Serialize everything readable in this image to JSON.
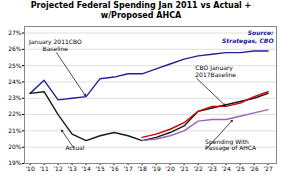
{
  "chart_data": {
    "type": "line",
    "title": "Projected Federal Spending Jan 2011 vs Actual +\nw/Proposed AHCA",
    "source": "Source:\nStrategas, CBO",
    "x": [
      10,
      11,
      12,
      13,
      14,
      15,
      16,
      17,
      18,
      19,
      20,
      21,
      22,
      23,
      24,
      25,
      26,
      27
    ],
    "series": [
      {
        "color": "#22229a",
        "values": [
          23.3,
          24.1,
          22.9,
          23.0,
          23.1,
          24.2,
          24.3,
          24.5,
          24.5,
          24.8,
          25.1,
          25.4,
          25.6,
          25.7,
          25.8,
          25.8,
          25.9,
          25.9
        ]
      },
      {
        "color": "#1a1a1a",
        "values": [
          23.3,
          23.4,
          22.0,
          20.8,
          20.4,
          20.7,
          20.9,
          20.7,
          20.4,
          20.6,
          20.9,
          21.3,
          22.2,
          22.4,
          22.6,
          22.8,
          23.0,
          23.3
        ]
      },
      {
        "color": "#cc0000",
        "values": [
          null,
          null,
          null,
          null,
          null,
          null,
          null,
          null,
          20.6,
          20.8,
          21.1,
          21.5,
          22.2,
          22.5,
          22.5,
          22.7,
          23.1,
          23.4
        ]
      },
      {
        "color": "#9966bb",
        "values": [
          null,
          null,
          null,
          null,
          null,
          null,
          null,
          null,
          20.4,
          20.5,
          20.7,
          21.0,
          21.6,
          21.7,
          21.7,
          21.9,
          22.1,
          22.3
        ]
      }
    ],
    "annotations": [
      {
        "text": "January 2011CBO\nBaseline",
        "x": 14.0,
        "y": 23.1,
        "text_x": 11.8,
        "text_y": 25.9,
        "align": "center"
      },
      {
        "text": "Actual",
        "x": 12.2,
        "y": 21.1,
        "text_x": 13.2,
        "text_y": 19.85,
        "align": "center"
      },
      {
        "text": "CBO January\n2017Baseline",
        "x": 24.0,
        "y": 22.5,
        "text_x": 21.8,
        "text_y": 24.3,
        "align": "left"
      },
      {
        "text": "Spending With\nPassage of AHCA",
        "x": 24.5,
        "y": 21.7,
        "text_x": 22.5,
        "text_y": 19.8,
        "align": "left"
      }
    ],
    "xlim": [
      9.6,
      27.6
    ],
    "xticks": [
      {
        "value": 10,
        "label": "'10"
      },
      {
        "value": 11,
        "label": "'11"
      },
      {
        "value": 12,
        "label": "'12"
      },
      {
        "value": 13,
        "label": "'13"
      },
      {
        "value": 14,
        "label": "'14"
      },
      {
        "value": 15,
        "label": "'15"
      },
      {
        "value": 16,
        "label": "'16"
      },
      {
        "value": 17,
        "label": "'17"
      },
      {
        "value": 18,
        "label": "'18"
      },
      {
        "value": 19,
        "label": "'19"
      },
      {
        "value": 20,
        "label": "'20"
      },
      {
        "value": 21,
        "label": "'21"
      },
      {
        "value": 22,
        "label": "'22"
      },
      {
        "value": 23,
        "label": "'23"
      },
      {
        "value": 24,
        "label": "'24"
      },
      {
        "value": 25,
        "label": "'25"
      },
      {
        "value": 26,
        "label": "'26"
      },
      {
        "value": 27,
        "label": "'27"
      }
    ],
    "ylim": [
      19.0,
      27.4
    ],
    "yticks": [
      {
        "value": 19,
        "label": "19%"
      },
      {
        "value": 20,
        "label": "20%"
      },
      {
        "value": 21,
        "label": "21%"
      },
      {
        "value": 22,
        "label": "22%"
      },
      {
        "value": 23,
        "label": "23%"
      },
      {
        "value": 24,
        "label": "24%"
      },
      {
        "value": 25,
        "label": "25%"
      },
      {
        "value": 26,
        "label": "26%"
      },
      {
        "value": 27,
        "label": "27%"
      }
    ],
    "grid": true
  }
}
